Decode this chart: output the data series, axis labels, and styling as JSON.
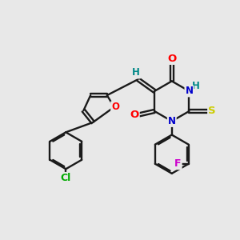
{
  "bg_color": "#e8e8e8",
  "bond_color": "#1a1a1a",
  "atom_colors": {
    "O": "#ff0000",
    "N": "#0000cc",
    "S": "#cccc00",
    "Cl": "#00aa00",
    "F": "#cc00cc",
    "H_label": "#008888",
    "C": "#1a1a1a"
  },
  "figsize": [
    3.0,
    3.0
  ],
  "dpi": 100
}
